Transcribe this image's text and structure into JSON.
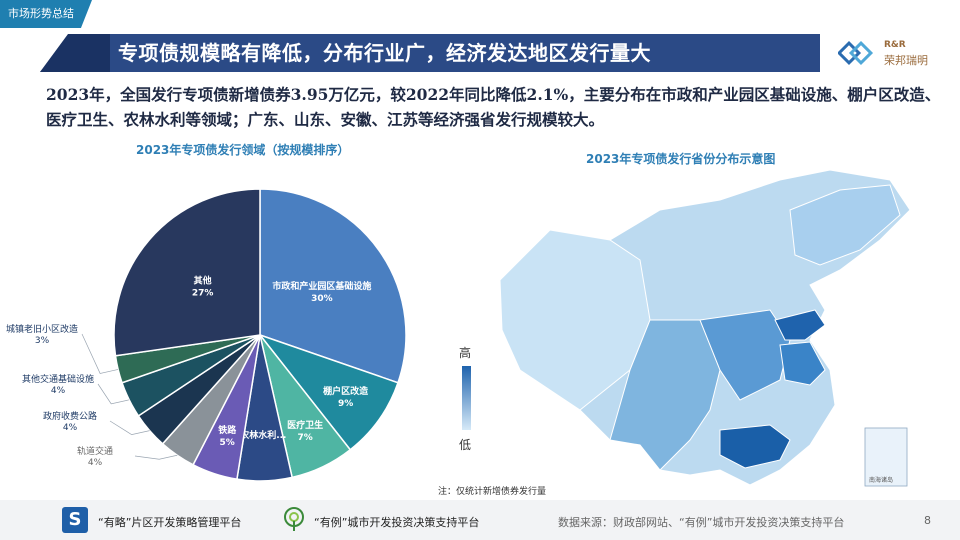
{
  "header": {
    "tag": "市场形势总结",
    "title": "专项债规模略有降低，分布行业广，经济发达地区发行量大",
    "logo_line1": "R&R",
    "logo_line2": "荣邦瑞明"
  },
  "summary": "2023年，全国发行专项债新增债券3.95万亿元，较2022年同比降低2.1%，主要分布在市政和产业园区基础设施、棚户区改造、医疗卫生、农林水利等领域；广东、山东、安徽、江苏等经济强省发行规模较大。",
  "chart_data": [
    {
      "type": "pie",
      "title": "2023年专项债发行领域（按规模排序）",
      "slices": [
        {
          "name": "市政和产业园区基础设施",
          "value": 30,
          "label": "30%",
          "color": "#4a7fc1",
          "label_pos": "inside"
        },
        {
          "name": "棚户区改造",
          "value": 9,
          "label": "9%",
          "color": "#1f8a9e",
          "label_pos": "inside"
        },
        {
          "name": "医疗卫生",
          "value": 7,
          "label": "7%",
          "color": "#4fb5a3",
          "label_pos": "inside"
        },
        {
          "name": "农林水利...",
          "value": 6,
          "label": "",
          "color": "#2c4a86",
          "label_pos": "inside"
        },
        {
          "name": "铁路",
          "value": 5,
          "label": "5%",
          "color": "#6a5bb5",
          "label_pos": "inside"
        },
        {
          "name": "轨道交通",
          "value": 4,
          "label": "4%",
          "color": "#8a9299",
          "label_pos": "outside"
        },
        {
          "name": "政府收费公路",
          "value": 4,
          "label": "4%",
          "color": "#1b3550",
          "label_pos": "outside"
        },
        {
          "name": "其他交通基础设施",
          "value": 4,
          "label": "4%",
          "color": "#1c5261",
          "label_pos": "outside"
        },
        {
          "name": "城镇老旧小区改造",
          "value": 3,
          "label": "3%",
          "color": "#2e6b55",
          "label_pos": "outside"
        },
        {
          "name": "其他",
          "value": 27,
          "label": "27%",
          "color": "#28385e",
          "label_pos": "inside"
        }
      ]
    },
    {
      "type": "heatmap",
      "title": "2023年专项债发行省份分布示意图",
      "legend_high": "高",
      "legend_low": "低",
      "inset_label": "南海诸岛"
    }
  ],
  "note": "注：仅统计新增债券发行量",
  "footer": {
    "platform1": "“有略”片区开发策略管理平台",
    "platform2": "“有例”城市开发投资决策支持平台",
    "source": "数据来源：财政部网站、“有例”城市开发投资决策支持平台",
    "page": "8"
  }
}
